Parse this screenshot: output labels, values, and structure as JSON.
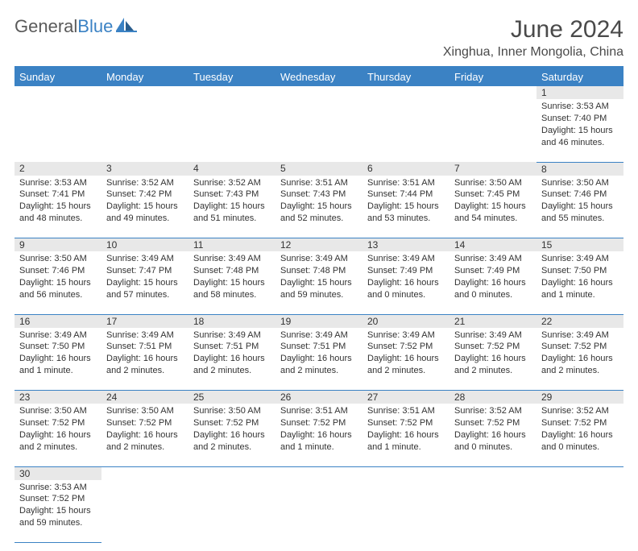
{
  "logo": {
    "text1": "General",
    "text2": "Blue"
  },
  "title": "June 2024",
  "subtitle": "Xinghua, Inner Mongolia, China",
  "colors": {
    "header_bg": "#3b82c4",
    "header_text": "#ffffff",
    "daynum_bg": "#e8e8e8",
    "row_border": "#3b82c4",
    "title_color": "#4a4a4a",
    "logo_gray": "#5a5a5a",
    "logo_blue": "#3b82c4"
  },
  "weekdays": [
    "Sunday",
    "Monday",
    "Tuesday",
    "Wednesday",
    "Thursday",
    "Friday",
    "Saturday"
  ],
  "weeks": [
    [
      null,
      null,
      null,
      null,
      null,
      null,
      {
        "n": "1",
        "sr": "3:53 AM",
        "ss": "7:40 PM",
        "dl": "15 hours and 46 minutes."
      }
    ],
    [
      {
        "n": "2",
        "sr": "3:53 AM",
        "ss": "7:41 PM",
        "dl": "15 hours and 48 minutes."
      },
      {
        "n": "3",
        "sr": "3:52 AM",
        "ss": "7:42 PM",
        "dl": "15 hours and 49 minutes."
      },
      {
        "n": "4",
        "sr": "3:52 AM",
        "ss": "7:43 PM",
        "dl": "15 hours and 51 minutes."
      },
      {
        "n": "5",
        "sr": "3:51 AM",
        "ss": "7:43 PM",
        "dl": "15 hours and 52 minutes."
      },
      {
        "n": "6",
        "sr": "3:51 AM",
        "ss": "7:44 PM",
        "dl": "15 hours and 53 minutes."
      },
      {
        "n": "7",
        "sr": "3:50 AM",
        "ss": "7:45 PM",
        "dl": "15 hours and 54 minutes."
      },
      {
        "n": "8",
        "sr": "3:50 AM",
        "ss": "7:46 PM",
        "dl": "15 hours and 55 minutes."
      }
    ],
    [
      {
        "n": "9",
        "sr": "3:50 AM",
        "ss": "7:46 PM",
        "dl": "15 hours and 56 minutes."
      },
      {
        "n": "10",
        "sr": "3:49 AM",
        "ss": "7:47 PM",
        "dl": "15 hours and 57 minutes."
      },
      {
        "n": "11",
        "sr": "3:49 AM",
        "ss": "7:48 PM",
        "dl": "15 hours and 58 minutes."
      },
      {
        "n": "12",
        "sr": "3:49 AM",
        "ss": "7:48 PM",
        "dl": "15 hours and 59 minutes."
      },
      {
        "n": "13",
        "sr": "3:49 AM",
        "ss": "7:49 PM",
        "dl": "16 hours and 0 minutes."
      },
      {
        "n": "14",
        "sr": "3:49 AM",
        "ss": "7:49 PM",
        "dl": "16 hours and 0 minutes."
      },
      {
        "n": "15",
        "sr": "3:49 AM",
        "ss": "7:50 PM",
        "dl": "16 hours and 1 minute."
      }
    ],
    [
      {
        "n": "16",
        "sr": "3:49 AM",
        "ss": "7:50 PM",
        "dl": "16 hours and 1 minute."
      },
      {
        "n": "17",
        "sr": "3:49 AM",
        "ss": "7:51 PM",
        "dl": "16 hours and 2 minutes."
      },
      {
        "n": "18",
        "sr": "3:49 AM",
        "ss": "7:51 PM",
        "dl": "16 hours and 2 minutes."
      },
      {
        "n": "19",
        "sr": "3:49 AM",
        "ss": "7:51 PM",
        "dl": "16 hours and 2 minutes."
      },
      {
        "n": "20",
        "sr": "3:49 AM",
        "ss": "7:52 PM",
        "dl": "16 hours and 2 minutes."
      },
      {
        "n": "21",
        "sr": "3:49 AM",
        "ss": "7:52 PM",
        "dl": "16 hours and 2 minutes."
      },
      {
        "n": "22",
        "sr": "3:49 AM",
        "ss": "7:52 PM",
        "dl": "16 hours and 2 minutes."
      }
    ],
    [
      {
        "n": "23",
        "sr": "3:50 AM",
        "ss": "7:52 PM",
        "dl": "16 hours and 2 minutes."
      },
      {
        "n": "24",
        "sr": "3:50 AM",
        "ss": "7:52 PM",
        "dl": "16 hours and 2 minutes."
      },
      {
        "n": "25",
        "sr": "3:50 AM",
        "ss": "7:52 PM",
        "dl": "16 hours and 2 minutes."
      },
      {
        "n": "26",
        "sr": "3:51 AM",
        "ss": "7:52 PM",
        "dl": "16 hours and 1 minute."
      },
      {
        "n": "27",
        "sr": "3:51 AM",
        "ss": "7:52 PM",
        "dl": "16 hours and 1 minute."
      },
      {
        "n": "28",
        "sr": "3:52 AM",
        "ss": "7:52 PM",
        "dl": "16 hours and 0 minutes."
      },
      {
        "n": "29",
        "sr": "3:52 AM",
        "ss": "7:52 PM",
        "dl": "16 hours and 0 minutes."
      }
    ],
    [
      {
        "n": "30",
        "sr": "3:53 AM",
        "ss": "7:52 PM",
        "dl": "15 hours and 59 minutes."
      },
      null,
      null,
      null,
      null,
      null,
      null
    ]
  ],
  "labels": {
    "sunrise": "Sunrise:",
    "sunset": "Sunset:",
    "daylight": "Daylight:"
  }
}
